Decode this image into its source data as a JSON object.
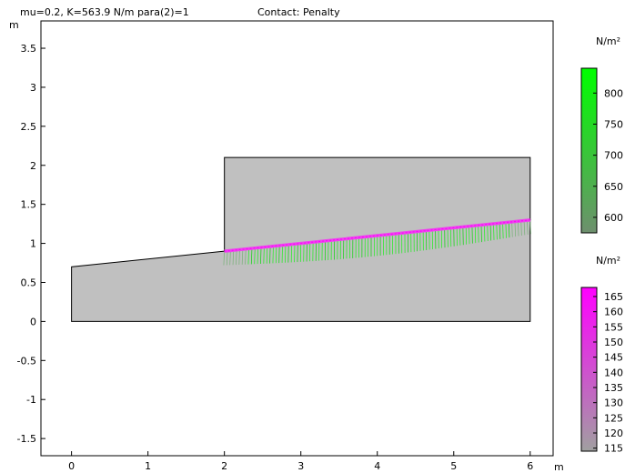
{
  "chart_data": {
    "type": "contour",
    "title": "mu=0.2, K=563.9 N/m para(2)=1",
    "subtitle": "Contact: Penalty",
    "x_unit": "m",
    "y_unit": "m",
    "xlim": [
      -0.4,
      6.3
    ],
    "ylim": [
      -1.72,
      3.85
    ],
    "x_ticks": [
      "0",
      "1",
      "2",
      "3",
      "4",
      "5",
      "6"
    ],
    "x_tick_values": [
      0,
      1,
      2,
      3,
      4,
      5,
      6
    ],
    "y_ticks": [
      "3.5",
      "3",
      "2.5",
      "2",
      "1.5",
      "1",
      "0.5",
      "0",
      "-0.5",
      "-1",
      "-1.5"
    ],
    "y_tick_values": [
      3.5,
      3,
      2.5,
      2,
      1.5,
      1,
      0.5,
      0,
      -0.5,
      -1,
      -1.5
    ],
    "grid": false,
    "body_color": "#c0c0c0",
    "lower_body": [
      [
        0,
        0
      ],
      [
        6,
        0
      ],
      [
        6,
        1.3
      ],
      [
        2,
        0.9
      ],
      [
        0,
        0.7
      ]
    ],
    "upper_body": [
      [
        2,
        0.9
      ],
      [
        6,
        1.3
      ],
      [
        6,
        2.1
      ],
      [
        2,
        2.1
      ]
    ],
    "contact_boundary": {
      "x0": 2,
      "y0": 0.9,
      "x1": 6,
      "y1": 1.3
    },
    "colorbars": [
      {
        "unit_label": "N/m²",
        "colors": [
          "#00ff00",
          "#6e8f6e"
        ],
        "ticks": [
          "800",
          "750",
          "700",
          "650",
          "600"
        ],
        "tick_values": [
          800,
          750,
          700,
          650,
          600
        ],
        "range": [
          575,
          840
        ]
      },
      {
        "unit_label": "N/m²",
        "colors": [
          "#ff00ff",
          "#a0a0a0"
        ],
        "ticks": [
          "165",
          "160",
          "155",
          "150",
          "145",
          "140",
          "135",
          "130",
          "125",
          "120",
          "115"
        ],
        "tick_values": [
          165,
          160,
          155,
          150,
          145,
          140,
          135,
          130,
          125,
          120,
          115
        ],
        "range": [
          114,
          168
        ]
      }
    ]
  }
}
